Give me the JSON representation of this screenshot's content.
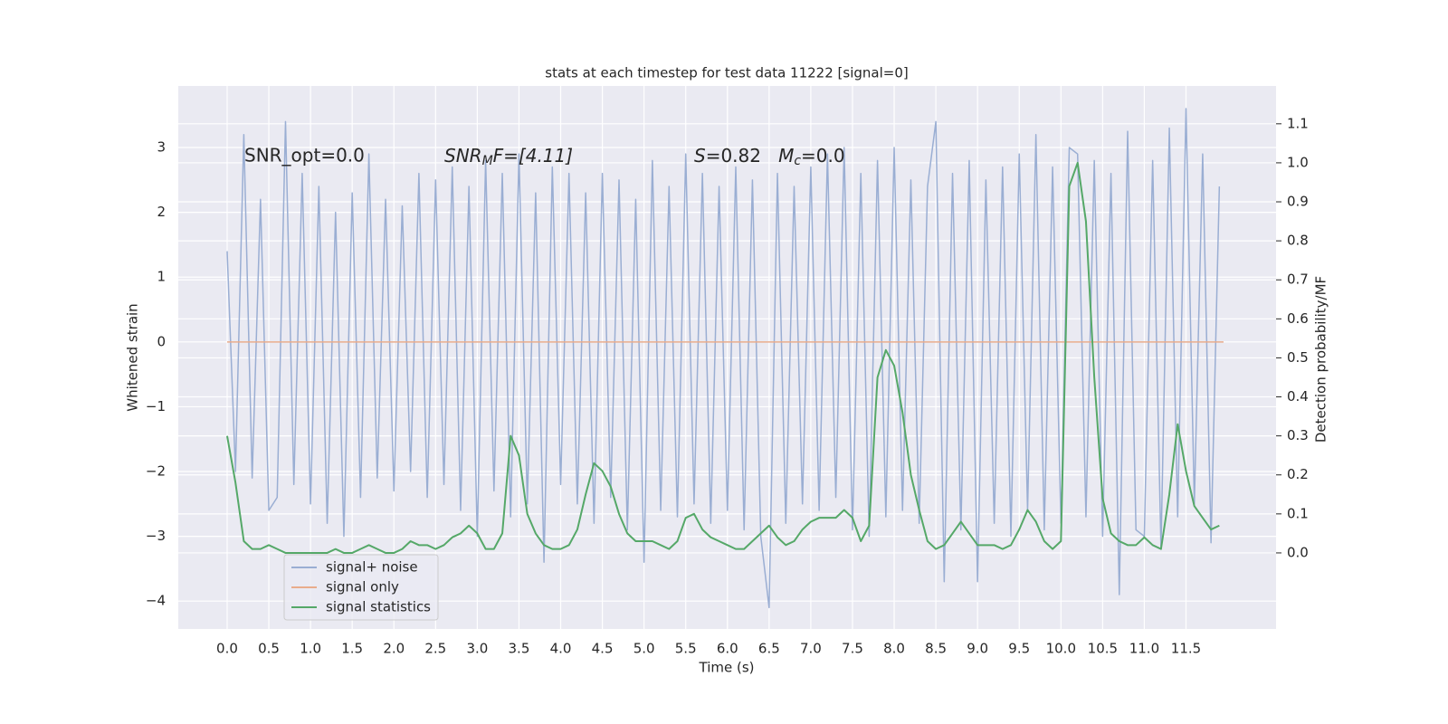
{
  "chart_data": {
    "type": "line",
    "title": "stats at each timestep for test data 11222 [signal=0]",
    "xlabel": "Time (s)",
    "ylabel": "Whitened strain",
    "y2label": "Detection probability/MF",
    "annotations": [
      "SNR_opt=0.0",
      [
        "SNR",
        "M",
        "F=[4.11]"
      ],
      [
        "S",
        "=0.82   ",
        "M",
        "c",
        "=0.0"
      ]
    ],
    "grid": true,
    "legend": "lower left",
    "xlim": [
      -0.586,
      12.58
    ],
    "xticks": [
      {
        "value": 0,
        "label": "0.0"
      },
      0.5,
      {
        "value": 1,
        "label": "1.0"
      },
      1.5,
      {
        "value": 2,
        "label": "2.0"
      },
      2.5,
      {
        "value": 3,
        "label": "3.0"
      },
      3.5,
      {
        "value": 4,
        "label": "4.0"
      },
      4.5,
      {
        "value": 5,
        "label": "5.0"
      },
      5.5,
      {
        "value": 6,
        "label": "6.0"
      },
      6.5,
      {
        "value": 7,
        "label": "7.0"
      },
      7.5,
      {
        "value": 8,
        "label": "8.0"
      },
      8.5,
      {
        "value": 9,
        "label": "9.0"
      },
      9.5,
      {
        "value": 10,
        "label": "10.0"
      },
      10.5,
      {
        "value": 11,
        "label": "11.0"
      },
      11.5
    ],
    "ylim": [
      -4.43,
      3.95
    ],
    "yticks": [
      {
        "value": -4,
        "label": "−4"
      },
      {
        "value": -3,
        "label": "−3"
      },
      {
        "value": -2,
        "label": "−2"
      },
      {
        "value": -1,
        "label": "−1"
      },
      0,
      1,
      2,
      3
    ],
    "y2lim": [
      -0.195,
      1.197
    ],
    "y2ticks": [
      {
        "value": 0,
        "label": "0.0"
      },
      0.1,
      0.2,
      0.3,
      0.4,
      0.5,
      0.6,
      0.7,
      0.8,
      0.9,
      {
        "value": 1,
        "label": "1.0"
      },
      1.1
    ],
    "x": [
      0.0,
      0.1,
      0.2,
      0.3,
      0.4,
      0.5,
      0.6,
      0.7,
      0.8,
      0.9,
      1.0,
      1.1,
      1.2,
      1.3,
      1.4,
      1.5,
      1.6,
      1.7,
      1.8,
      1.9,
      2.0,
      2.1,
      2.2,
      2.3,
      2.4,
      2.5,
      2.6,
      2.7,
      2.8,
      2.9,
      3.0,
      3.1,
      3.2,
      3.3,
      3.4,
      3.5,
      3.6,
      3.7,
      3.8,
      3.9,
      4.0,
      4.1,
      4.2,
      4.3,
      4.4,
      4.5,
      4.6,
      4.7,
      4.8,
      4.9,
      5.0,
      5.1,
      5.2,
      5.3,
      5.4,
      5.5,
      5.6,
      5.7,
      5.8,
      5.9,
      6.0,
      6.1,
      6.2,
      6.3,
      6.4,
      6.5,
      6.6,
      6.7,
      6.8,
      6.9,
      7.0,
      7.1,
      7.2,
      7.3,
      7.4,
      7.5,
      7.6,
      7.7,
      7.8,
      7.9,
      8.0,
      8.1,
      8.2,
      8.3,
      8.4,
      8.5,
      8.6,
      8.7,
      8.8,
      8.9,
      9.0,
      9.1,
      9.2,
      9.3,
      9.4,
      9.5,
      9.6,
      9.7,
      9.8,
      9.9,
      10.0,
      10.1,
      10.2,
      10.3,
      10.4,
      10.5,
      10.6,
      10.7,
      10.8,
      10.9,
      11.0,
      11.1,
      11.2,
      11.3,
      11.4,
      11.5,
      11.6,
      11.7,
      11.8,
      11.9
    ],
    "series": [
      {
        "name": "signal+ noise",
        "color": "#9aaed3",
        "values": [
          1.4,
          -2.0,
          3.2,
          -2.1,
          2.2,
          -2.6,
          -2.4,
          3.4,
          -2.2,
          2.6,
          -2.5,
          2.4,
          -2.8,
          2.0,
          -3.0,
          2.3,
          -2.4,
          2.9,
          -2.1,
          2.2,
          -2.3,
          2.1,
          -2.0,
          2.6,
          -2.4,
          2.5,
          -2.2,
          2.7,
          -2.6,
          2.4,
          -3.0,
          2.8,
          -2.3,
          2.6,
          -2.7,
          2.9,
          -2.5,
          2.3,
          -3.4,
          2.7,
          -2.2,
          2.6,
          -2.5,
          2.3,
          -2.8,
          2.6,
          -2.4,
          2.5,
          -2.9,
          2.2,
          -3.4,
          2.8,
          -2.6,
          2.4,
          -2.7,
          2.9,
          -2.5,
          2.6,
          -2.8,
          2.4,
          -2.6,
          2.7,
          -2.9,
          2.5,
          -3.0,
          -4.1,
          2.6,
          -2.8,
          2.4,
          -2.5,
          2.7,
          -2.6,
          2.9,
          -2.4,
          3.0,
          -2.9,
          2.6,
          -3.0,
          2.8,
          -2.7,
          3.0,
          -2.6,
          2.5,
          -2.8,
          2.4,
          3.4,
          -3.7,
          2.6,
          -2.9,
          2.8,
          -3.7,
          2.5,
          -2.8,
          2.7,
          -3.0,
          2.9,
          -2.6,
          3.2,
          -2.9,
          2.7,
          -2.8,
          3.0,
          2.9,
          -2.7,
          2.8,
          -3.0,
          2.6,
          -3.9,
          3.25,
          -2.9,
          -3.0,
          2.8,
          -3.2,
          3.3,
          -2.7,
          3.6,
          -2.5,
          2.9,
          -3.1,
          2.4
        ]
      },
      {
        "name": "signal only",
        "color": "#e9ac8c",
        "x": [
          0.0,
          11.95
        ],
        "values": [
          0,
          0
        ]
      },
      {
        "name": "signal statistics",
        "color": "#55a868",
        "axis": "y2",
        "values": [
          0.3,
          0.18,
          0.03,
          0.01,
          0.01,
          0.02,
          0.01,
          0.0,
          0.0,
          0.0,
          0.0,
          0.0,
          0.0,
          0.01,
          0.0,
          0.0,
          0.01,
          0.02,
          0.01,
          0.0,
          0.0,
          0.01,
          0.03,
          0.02,
          0.02,
          0.01,
          0.02,
          0.04,
          0.05,
          0.07,
          0.05,
          0.01,
          0.01,
          0.05,
          0.3,
          0.25,
          0.1,
          0.05,
          0.02,
          0.01,
          0.01,
          0.02,
          0.06,
          0.15,
          0.23,
          0.21,
          0.17,
          0.1,
          0.05,
          0.03,
          0.03,
          0.03,
          0.02,
          0.01,
          0.03,
          0.09,
          0.1,
          0.06,
          0.04,
          0.03,
          0.02,
          0.01,
          0.01,
          0.03,
          0.05,
          0.07,
          0.04,
          0.02,
          0.03,
          0.06,
          0.08,
          0.09,
          0.09,
          0.09,
          0.11,
          0.09,
          0.03,
          0.07,
          0.45,
          0.52,
          0.48,
          0.36,
          0.2,
          0.11,
          0.03,
          0.01,
          0.02,
          0.05,
          0.08,
          0.05,
          0.02,
          0.02,
          0.02,
          0.01,
          0.02,
          0.06,
          0.11,
          0.08,
          0.03,
          0.01,
          0.03,
          0.94,
          1.0,
          0.85,
          0.45,
          0.14,
          0.05,
          0.03,
          0.02,
          0.02,
          0.04,
          0.02,
          0.01,
          0.15,
          0.33,
          0.21,
          0.12,
          0.09,
          0.06,
          0.07
        ]
      }
    ]
  }
}
